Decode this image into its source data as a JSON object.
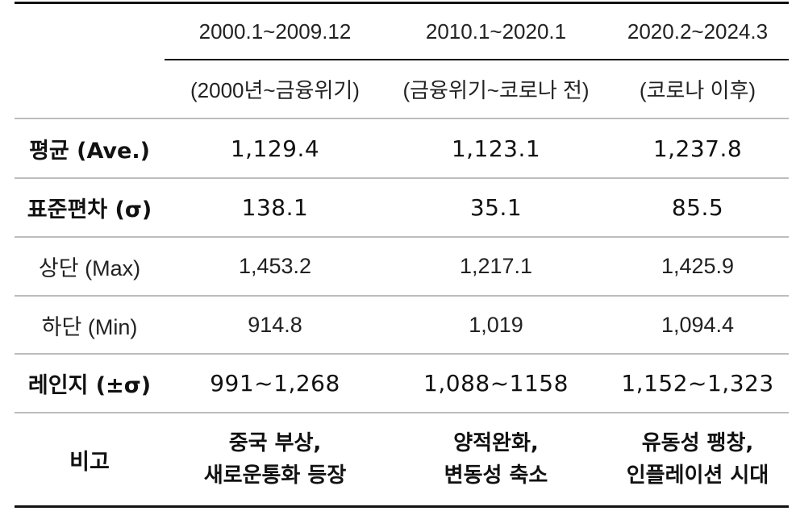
{
  "table": {
    "header": {
      "periods": [
        "2000.1~2009.12",
        "2010.1~2020.1",
        "2020.2~2024.3"
      ],
      "subtitles": [
        "(2000년~금융위기)",
        "(금융위기~코로나 전)",
        "(코로나 이후)"
      ]
    },
    "rows": {
      "average": {
        "label": "평균 (Ave.)",
        "values": [
          "1,129.4",
          "1,123.1",
          "1,237.8"
        ]
      },
      "stddev": {
        "label": "표준편차 (σ)",
        "values": [
          "138.1",
          "35.1",
          "85.5"
        ]
      },
      "max": {
        "label": "상단 (Max)",
        "values": [
          "1,453.2",
          "1,217.1",
          "1,425.9"
        ]
      },
      "min": {
        "label": "하단 (Min)",
        "values": [
          "914.8",
          "1,019",
          "1,094.4"
        ]
      },
      "range": {
        "label": "레인지 (±σ)",
        "values": [
          "991~1,268",
          "1,088~1158",
          "1,152~1,323"
        ]
      },
      "note": {
        "label": "비고",
        "values": [
          [
            "중국 부상,",
            "새로운통화 등장"
          ],
          [
            "양적완화,",
            "변동성 축소"
          ],
          [
            "유동성 팽창,",
            "인플레이션 시대"
          ]
        ]
      }
    }
  }
}
